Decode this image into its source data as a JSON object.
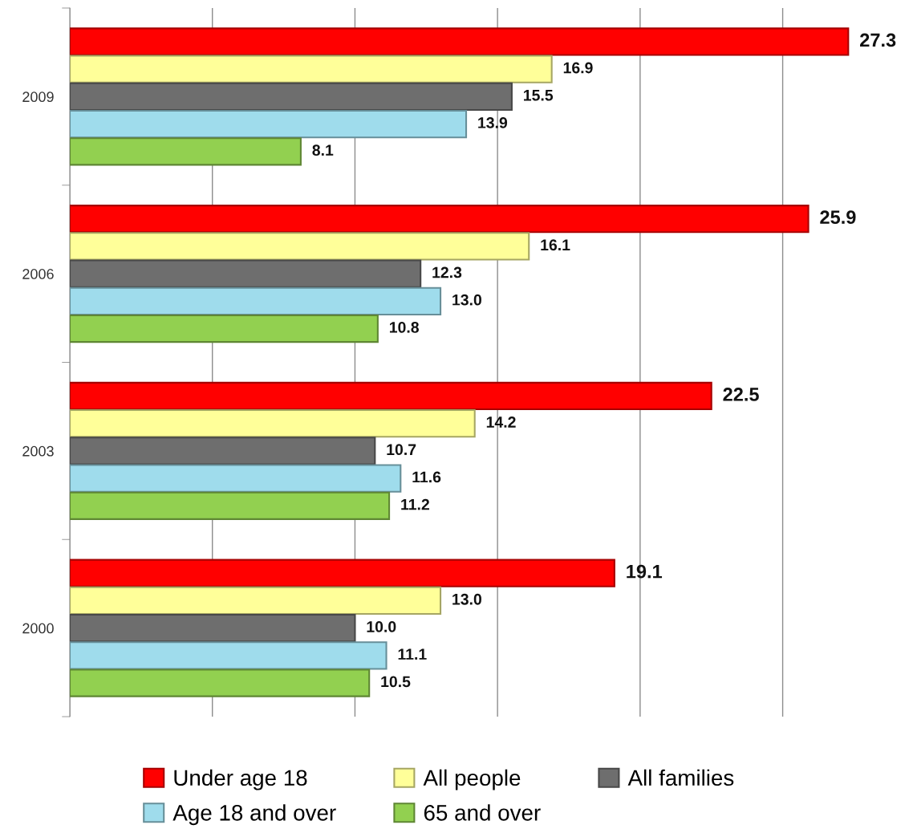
{
  "chart_data": {
    "type": "bar",
    "orientation": "horizontal",
    "categories": [
      "2009",
      "2006",
      "2003",
      "2000"
    ],
    "series": [
      {
        "name": "Under age 18",
        "color": "#ff0000",
        "values": [
          27.3,
          25.9,
          22.5,
          19.1
        ],
        "value_labels": [
          "27.3",
          "25.9",
          "22.5",
          "19.1"
        ]
      },
      {
        "name": "All people",
        "color": "#ffff99",
        "values": [
          16.9,
          16.1,
          14.2,
          13.0
        ],
        "value_labels": [
          "16.9",
          "16.1",
          "14.2",
          "13.0"
        ]
      },
      {
        "name": "All families",
        "color": "#6e6e6e",
        "values": [
          15.5,
          12.3,
          10.7,
          10.0
        ],
        "value_labels": [
          "15.5",
          "12.3",
          "10.7",
          "10.0"
        ]
      },
      {
        "name": "Age 18 and over",
        "color": "#9fdcec",
        "values": [
          13.9,
          13.0,
          11.6,
          11.1
        ],
        "value_labels": [
          "13.9",
          "13.0",
          "11.6",
          "11.1"
        ]
      },
      {
        "name": "65 and over",
        "color": "#92d050",
        "values": [
          8.1,
          10.8,
          11.2,
          10.5
        ],
        "value_labels": [
          "8.1",
          "10.8",
          "11.2",
          "10.5"
        ]
      }
    ],
    "xticks": [
      {
        "value": 0,
        "label": null
      },
      {
        "value": 5,
        "label": null
      },
      {
        "value": 10,
        "label": null
      },
      {
        "value": 15,
        "label": null
      },
      {
        "value": 20,
        "label": null
      },
      {
        "value": 25,
        "label": null
      }
    ],
    "tick_labels": "y",
    "grid": "x",
    "legend": "bottom"
  }
}
